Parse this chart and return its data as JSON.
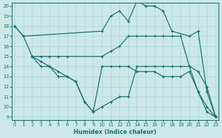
{
  "xlabel": "Humidex (Indice chaleur)",
  "background_color": "#cce8e8",
  "grid_color": "#aad4d4",
  "line_color": "#1a6e6e",
  "xlim": [
    -0.3,
    23.3
  ],
  "ylim": [
    8.7,
    20.3
  ],
  "xticks": [
    0,
    1,
    2,
    3,
    4,
    5,
    6,
    7,
    8,
    9,
    10,
    11,
    12,
    13,
    14,
    15,
    16,
    17,
    18,
    19,
    20,
    21,
    22,
    23
  ],
  "yticks": [
    9,
    10,
    11,
    12,
    13,
    14,
    15,
    16,
    17,
    18,
    19,
    20
  ],
  "line1_x": [
    0,
    1,
    2,
    3,
    4,
    5,
    6,
    7,
    8,
    9,
    10,
    11,
    12,
    13,
    14,
    15,
    16,
    17,
    18,
    19,
    20,
    21,
    22,
    23
  ],
  "line1_y": [
    18,
    17,
    15,
    14,
    14,
    13,
    13,
    12.5,
    10.5,
    9.5,
    10,
    10.5,
    11,
    11,
    14,
    14,
    14,
    14,
    14,
    14,
    14,
    11.5,
    10,
    9
  ],
  "line2_x": [
    0,
    1,
    10,
    11,
    12,
    13,
    14,
    15,
    16,
    17,
    18,
    20,
    21,
    22,
    23
  ],
  "line2_y": [
    18,
    17,
    17.5,
    19,
    19.5,
    18.5,
    20.5,
    20,
    20,
    19.5,
    17.5,
    17,
    17.5,
    11.5,
    9
  ],
  "line3_x": [
    2,
    3,
    4,
    5,
    6,
    10,
    11,
    12,
    13,
    14,
    15,
    16,
    17,
    18,
    19,
    20,
    21,
    22,
    23
  ],
  "line3_y": [
    15,
    15,
    15,
    15,
    15,
    15,
    15.5,
    16,
    17,
    17,
    17,
    17,
    17,
    17,
    17,
    14,
    13.5,
    12,
    9
  ],
  "line4_x": [
    2,
    3,
    4,
    5,
    6,
    7,
    8,
    9,
    10,
    11,
    12,
    13,
    14,
    15,
    16,
    17,
    18,
    19,
    20,
    21,
    22,
    23
  ],
  "line4_y": [
    15,
    14.5,
    14,
    13.5,
    13,
    12.5,
    10.5,
    9.5,
    14,
    14,
    14,
    14,
    13.5,
    13.5,
    13.5,
    13,
    13,
    13,
    13.5,
    11.5,
    9.5,
    9
  ]
}
